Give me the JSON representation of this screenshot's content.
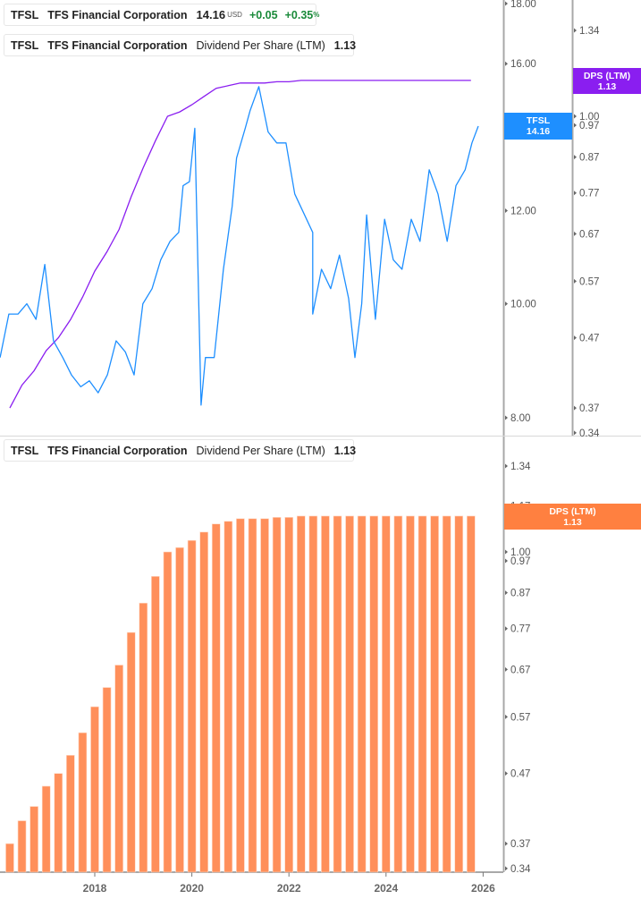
{
  "colors": {
    "price": "#1e8fff",
    "dps_line": "#8a1ef0",
    "dps_bar": "#ff8f5a",
    "dps_bar_tag": "#ff8040",
    "axis": "#a8a8a8",
    "text": "#555555",
    "positive": "#1a8a3a"
  },
  "legends": [
    {
      "ticker": "TFSL",
      "company": "TFS Financial Corporation",
      "price": "14.16",
      "currency": "USD",
      "change": "+0.05",
      "change_pct": "+0.35",
      "pct_sign": "%"
    },
    {
      "ticker": "TFSL",
      "company": "TFS Financial Corporation",
      "metric": "Dividend Per Share (LTM)",
      "value": "1.13"
    },
    {
      "ticker": "TFSL",
      "company": "TFS Financial Corporation",
      "metric": "Dividend Per Share (LTM)",
      "value": "1.13"
    }
  ],
  "tags": {
    "price": {
      "line1": "TFSL",
      "line2": "14.16"
    },
    "dps_top": {
      "line1": "DPS (LTM)",
      "line2": "1.13"
    },
    "dps_bottom": {
      "line1": "DPS (LTM)",
      "line2": "1.13"
    }
  },
  "chart_data": [
    {
      "type": "line",
      "scale": "log",
      "series": [
        {
          "name": "TFSL",
          "axis": "price",
          "x": [
            2016.05,
            2016.23,
            2016.42,
            2016.6,
            2016.79,
            2016.97,
            2017.15,
            2017.34,
            2017.52,
            2017.71,
            2017.89,
            2018.07,
            2018.26,
            2018.44,
            2018.63,
            2018.81,
            2018.99,
            2019.18,
            2019.36,
            2019.55,
            2019.73,
            2019.82,
            2019.95,
            2020.06,
            2020.19,
            2020.28,
            2020.46,
            2020.65,
            2020.83,
            2020.92,
            2021.1,
            2021.2,
            2021.38,
            2021.57,
            2021.75,
            2021.94,
            2022.12,
            2022.49,
            2022.49,
            2022.67,
            2022.86,
            2023.04,
            2023.23,
            2023.36,
            2023.5,
            2023.6,
            2023.78,
            2023.97,
            2024.15,
            2024.33,
            2024.52,
            2024.7,
            2024.89,
            2025.07,
            2025.26,
            2025.44,
            2025.63,
            2025.77,
            2025.9
          ],
          "y": [
            9.0,
            9.8,
            9.8,
            10.0,
            9.7,
            10.8,
            9.3,
            9.0,
            8.7,
            8.5,
            8.6,
            8.4,
            8.7,
            9.3,
            9.1,
            8.7,
            10.0,
            10.3,
            10.9,
            11.3,
            11.5,
            12.6,
            12.7,
            14.1,
            8.2,
            9.0,
            9.0,
            10.7,
            12.1,
            13.3,
            14.1,
            14.6,
            15.3,
            14.0,
            13.7,
            13.7,
            12.4,
            11.5,
            9.8,
            10.7,
            10.3,
            11.0,
            10.1,
            9.0,
            10.0,
            11.9,
            9.7,
            11.8,
            10.9,
            10.7,
            11.8,
            11.3,
            13.0,
            12.4,
            11.3,
            12.6,
            13.0,
            13.7,
            14.16
          ]
        },
        {
          "name": "DPS (LTM)",
          "axis": "dps",
          "ref": "bars"
        }
      ],
      "price_axis": {
        "ticks": [
          "18.00",
          "16.00",
          "12.00",
          "10.00",
          "8.00"
        ],
        "range": [
          7.95,
          18.15
        ]
      },
      "dps_axis": {
        "ticks": [
          "1.34",
          "1.00",
          "0.97",
          "0.87",
          "0.77",
          "0.67",
          "0.57",
          "0.47",
          "0.37",
          "0.34"
        ],
        "range": [
          0.335,
          1.48
        ]
      }
    },
    {
      "type": "bar",
      "scale": "log",
      "x": [
        2016.25,
        2016.5,
        2016.75,
        2017.0,
        2017.25,
        2017.5,
        2017.75,
        2018.0,
        2018.25,
        2018.5,
        2018.75,
        2019.0,
        2019.25,
        2019.5,
        2019.75,
        2020.0,
        2020.25,
        2020.5,
        2020.75,
        2021.0,
        2021.25,
        2021.5,
        2021.75,
        2022.0,
        2022.25,
        2022.5,
        2022.75,
        2023.0,
        2023.25,
        2023.5,
        2023.75,
        2024.0,
        2024.25,
        2024.5,
        2024.75,
        2025.0,
        2025.25,
        2025.5,
        2025.75
      ],
      "values": [
        0.37,
        0.4,
        0.42,
        0.45,
        0.47,
        0.5,
        0.54,
        0.59,
        0.63,
        0.68,
        0.76,
        0.84,
        0.92,
        1.0,
        1.015,
        1.04,
        1.07,
        1.1,
        1.11,
        1.12,
        1.12,
        1.12,
        1.125,
        1.125,
        1.13,
        1.13,
        1.13,
        1.13,
        1.13,
        1.13,
        1.13,
        1.13,
        1.13,
        1.13,
        1.13,
        1.13,
        1.13,
        1.13,
        1.13
      ],
      "y_axis": {
        "ticks": [
          "1.34",
          "1.17",
          "1.00",
          "0.97",
          "0.87",
          "0.77",
          "0.67",
          "0.57",
          "0.47",
          "0.37",
          "0.34"
        ],
        "range": [
          0.335,
          1.48
        ]
      },
      "x_axis": {
        "ticks": [
          "2018",
          "2020",
          "2022",
          "2024",
          "2026"
        ],
        "range": [
          2016.05,
          2026.0
        ]
      }
    }
  ]
}
